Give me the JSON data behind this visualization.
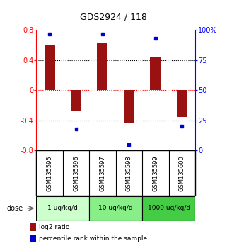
{
  "title": "GDS2924 / 118",
  "samples": [
    "GSM135595",
    "GSM135596",
    "GSM135597",
    "GSM135598",
    "GSM135599",
    "GSM135600"
  ],
  "log2_ratio": [
    0.6,
    -0.27,
    0.63,
    -0.44,
    0.45,
    -0.35
  ],
  "percentile_rank": [
    97,
    18,
    97,
    5,
    93,
    20
  ],
  "bar_color": "#991111",
  "dot_color": "#0000cc",
  "ylim_left": [
    -0.8,
    0.8
  ],
  "ylim_right": [
    0,
    100
  ],
  "yticks_left": [
    -0.8,
    -0.4,
    0.0,
    0.4,
    0.8
  ],
  "ytick_labels_left": [
    "-0.8",
    "-0.4",
    "0",
    "0.4",
    "0.8"
  ],
  "yticks_right": [
    0,
    25,
    50,
    75,
    100
  ],
  "ytick_labels_right": [
    "0",
    "25",
    "50",
    "75",
    "100%"
  ],
  "hlines": [
    0.4,
    0.0,
    -0.4
  ],
  "hline_colors": [
    "black",
    "red",
    "black"
  ],
  "doses": [
    {
      "label": "1 ug/kg/d",
      "samples": [
        0,
        1
      ],
      "color": "#ccffcc"
    },
    {
      "label": "10 ug/kg/d",
      "samples": [
        2,
        3
      ],
      "color": "#88ee88"
    },
    {
      "label": "1000 ug/kg/d",
      "samples": [
        4,
        5
      ],
      "color": "#44cc44"
    }
  ],
  "dose_label": "dose",
  "legend_bar_label": "log2 ratio",
  "legend_dot_label": "percentile rank within the sample",
  "bar_width": 0.4,
  "bg_color": "#ffffff",
  "plot_bg": "#ffffff",
  "sample_bg": "#cccccc"
}
